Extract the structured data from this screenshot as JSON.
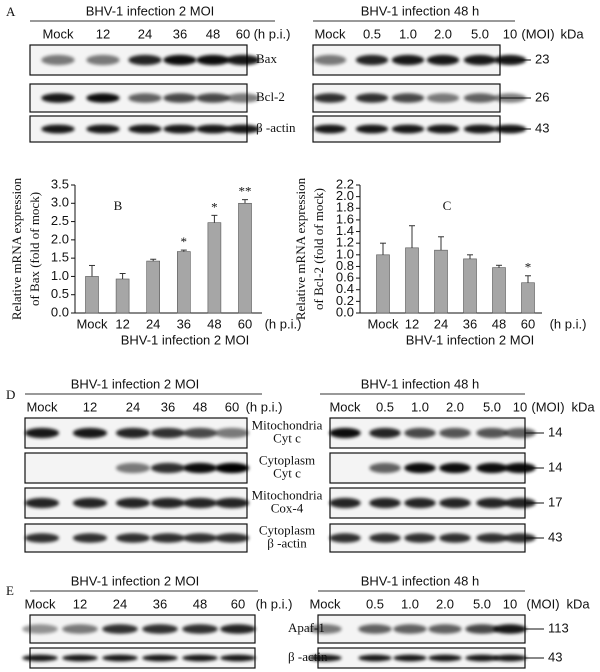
{
  "panels": {
    "A": {
      "letter": "A",
      "left": {
        "title": "BHV-1 infection 2 MOI",
        "lanes": [
          "Mock",
          "12",
          "24",
          "36",
          "48",
          "60"
        ],
        "unit": "(h p.i.)"
      },
      "right": {
        "title": "BHV-1 infection 48 h",
        "lanes": [
          "Mock",
          "0.5",
          "1.0",
          "2.0",
          "5.0",
          "10"
        ],
        "unit": "(MOI)",
        "kda_header": "kDa"
      },
      "rows": [
        {
          "label": [
            "Bax"
          ],
          "kda": "23"
        },
        {
          "label": [
            "Bcl-2"
          ],
          "kda": "26"
        },
        {
          "label": [
            "β -actin"
          ],
          "kda": "43"
        }
      ]
    },
    "D": {
      "letter": "D",
      "left": {
        "title": "BHV-1 infection 2 MOI",
        "lanes": [
          "Mock",
          "12",
          "24",
          "36",
          "48",
          "60"
        ],
        "unit": "(h p.i.)"
      },
      "right": {
        "title": "BHV-1 infection 48 h",
        "lanes": [
          "Mock",
          "0.5",
          "1.0",
          "2.0",
          "5.0",
          "10"
        ],
        "unit": "(MOI)",
        "kda_header": "kDa"
      },
      "rows": [
        {
          "label": [
            "Mitochondria",
            "Cyt c"
          ],
          "kda": "14"
        },
        {
          "label": [
            "Cytoplasm",
            "Cyt c"
          ],
          "kda": "14"
        },
        {
          "label": [
            "Mitochondria",
            "Cox-4"
          ],
          "kda": "17"
        },
        {
          "label": [
            "Cytoplasm",
            "β -actin"
          ],
          "kda": "43"
        }
      ]
    },
    "E": {
      "letter": "E",
      "left": {
        "title": "BHV-1 infection 2 MOI",
        "lanes": [
          "Mock",
          "12",
          "24",
          "36",
          "48",
          "60"
        ],
        "unit": "(h p.i.)"
      },
      "right": {
        "title": "BHV-1 infection 48 h",
        "lanes": [
          "Mock",
          "0.5",
          "1.0",
          "2.0",
          "5.0",
          "10"
        ],
        "unit": "(MOI)",
        "kda_header": "kDa"
      },
      "rows": [
        {
          "label": [
            "Apaf-1"
          ],
          "kda": "113"
        },
        {
          "label": [
            "β -actin"
          ],
          "kda": "43"
        }
      ]
    }
  },
  "chart_data": [
    {
      "type": "bar",
      "panel_label": "B",
      "y_label": [
        "Relative mRNA expression",
        "of  Bax (fold of mock)"
      ],
      "x_label": "BHV-1 infection 2 MOI",
      "categories": [
        "Mock",
        "12",
        "24",
        "36",
        "48",
        "60"
      ],
      "x_unit": "(h p.i.)",
      "values": [
        1.0,
        0.93,
        1.42,
        1.68,
        2.47,
        3.0
      ],
      "errors": [
        0.3,
        0.15,
        0.05,
        0.04,
        0.2,
        0.1
      ],
      "annotations": [
        null,
        null,
        null,
        "*",
        "*",
        "**"
      ],
      "color": "#a6a6a6",
      "ylim": [
        0,
        3.5
      ],
      "yticks": [
        {
          "value": 0,
          "label": "0.0"
        },
        0.5,
        {
          "value": 1,
          "label": "1.0"
        },
        1.5,
        {
          "value": 2,
          "label": "2.0"
        },
        2.5,
        {
          "value": 3,
          "label": "3.0"
        },
        3.5
      ]
    },
    {
      "type": "bar",
      "panel_label": "C",
      "y_label": [
        "Relative mRNA expression",
        "of  Bcl-2 (fold of mock)"
      ],
      "x_label": "BHV-1 infection 2 MOI",
      "categories": [
        "Mock",
        "12",
        "24",
        "36",
        "48",
        "60"
      ],
      "x_unit": "(h p.i.)",
      "values": [
        1.0,
        1.12,
        1.08,
        0.93,
        0.78,
        0.52
      ],
      "errors": [
        0.2,
        0.38,
        0.23,
        0.07,
        0.04,
        0.12
      ],
      "annotations": [
        null,
        null,
        null,
        null,
        null,
        "*"
      ],
      "color": "#a6a6a6",
      "ylim": [
        0,
        2.2
      ],
      "yticks": [
        {
          "value": 0,
          "label": "0.0"
        },
        0.2,
        0.4,
        0.6,
        0.8,
        {
          "value": 1,
          "label": "1.0"
        },
        1.2,
        1.4,
        1.6,
        1.8,
        {
          "value": 2,
          "label": "2.0"
        },
        2.2
      ]
    }
  ]
}
